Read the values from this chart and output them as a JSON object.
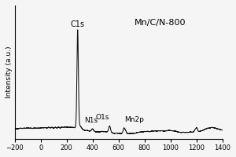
{
  "title": "Mn/C/N-800",
  "ylabel": "Intensity (a.u.)",
  "xlim": [
    -200,
    1400
  ],
  "background_color": "#f5f5f5",
  "line_color": "#111111",
  "title_fontsize": 8,
  "label_fontsize": 7,
  "axis_fontsize": 6.5,
  "xticks": [
    -200,
    0,
    200,
    400,
    600,
    800,
    1000,
    1200,
    1400
  ]
}
